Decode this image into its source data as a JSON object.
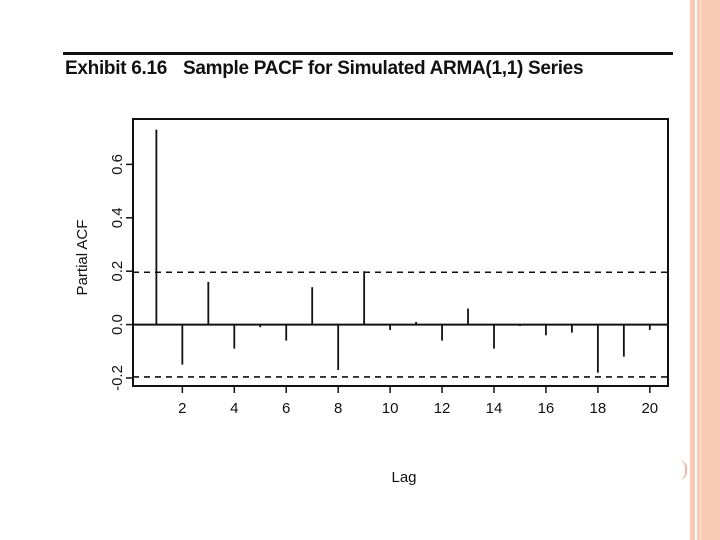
{
  "exhibit": {
    "number": "Exhibit 6.16",
    "caption": "Sample PACF for Simulated ARMA(1,1) Series"
  },
  "colors": {
    "ink": "#111111",
    "slide_border": "#f7cbb6"
  },
  "chart_data": {
    "type": "bar",
    "style": "needle",
    "xlabel": "Lag",
    "ylabel": "Partial ACF",
    "xlim": [
      0.1,
      20.7
    ],
    "ylim": [
      -0.23,
      0.77
    ],
    "x_ticks": [
      2,
      4,
      6,
      8,
      10,
      12,
      14,
      16,
      18,
      20
    ],
    "x_tick_labels": [
      "2",
      "4",
      "6",
      "8",
      "10",
      "12",
      "14",
      "16",
      "18",
      "20"
    ],
    "y_ticks": [
      -0.2,
      0.0,
      0.2,
      0.4,
      0.6
    ],
    "y_tick_labels": [
      "-0.2",
      "0.0",
      "0.2",
      "0.4",
      "0.6"
    ],
    "zero_line": 0.0,
    "confidence_bounds": [
      0.196,
      -0.196
    ],
    "x": [
      1,
      2,
      3,
      4,
      5,
      6,
      7,
      8,
      9,
      10,
      11,
      12,
      13,
      14,
      15,
      16,
      17,
      18,
      19,
      20
    ],
    "values": [
      0.73,
      -0.15,
      0.16,
      -0.09,
      -0.01,
      -0.06,
      0.14,
      -0.17,
      0.2,
      -0.02,
      0.01,
      -0.06,
      0.06,
      -0.09,
      -0.005,
      -0.04,
      -0.03,
      -0.18,
      -0.12,
      -0.02
    ],
    "grid": false,
    "legend": "none"
  }
}
